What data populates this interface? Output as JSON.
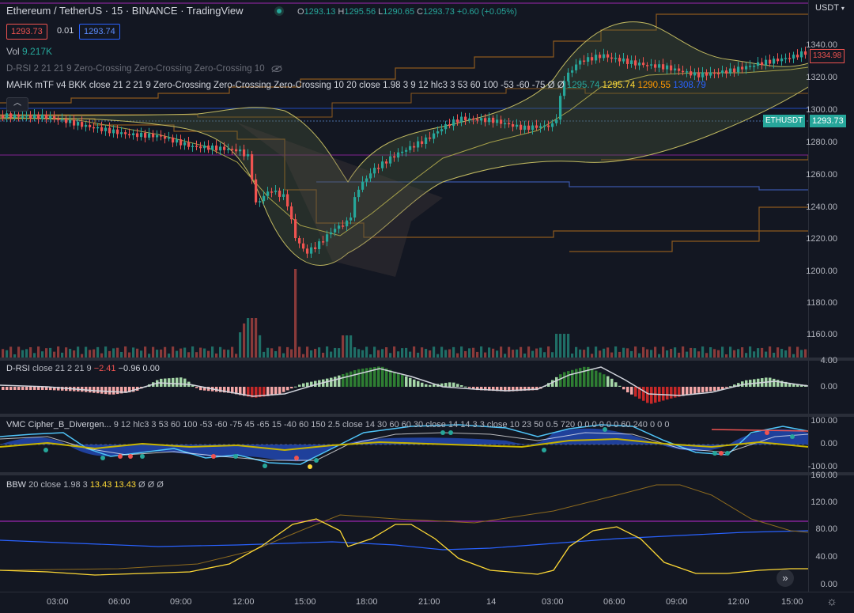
{
  "header": {
    "title": "Ethereum / TetherUS · 15 · BINANCE · TradingView",
    "symbol": "Ethereum / TetherUS",
    "interval": "15",
    "exchange": "BINANCE",
    "brand": "TradingView",
    "ohlc": {
      "o_label": "O",
      "o": "1293.13",
      "h_label": "H",
      "h": "1295.56",
      "l_label": "L",
      "l": "1290.65",
      "c_label": "C",
      "c": "1293.73",
      "change": "+0.60 (+0.05%)"
    },
    "bid": "1293.73",
    "spread": "0.01",
    "ask": "1293.74"
  },
  "currency": "USDT",
  "main_indicators": {
    "vol_label": "Vol",
    "vol_value": "9.217K",
    "drsi_label": "D-RSI 2 21 21 9 Zero-Crossing Zero-Crossing Zero-Crossing 10",
    "mahk_label": "MAHK mTF v4 BKK close 21 2 21 9 Zero-Crossing Zero-Crossing Zero-Crossing 10 20 close 1.98 3 9 12 hlc3 3 53 60 100 -53 -60 -75  Ø  Ø",
    "mahk_v1": "1295.74",
    "mahk_v2": "1295.74",
    "mahk_v3": "1290.55",
    "mahk_v4": "1308.79"
  },
  "price_axis": [
    "1340.00",
    "1320.00",
    "1300.00",
    "1280.00",
    "1260.00",
    "1240.00",
    "1220.00",
    "1200.00",
    "1180.00",
    "1160.00"
  ],
  "last_price_tag": "1334.98",
  "symbol_tag": "ETHUSDT",
  "symbol_price": "1293.73",
  "drsi_pane": {
    "label": "D-RSI",
    "params": "close 21 2 21 9",
    "v1": "−2.41",
    "v2": "−0.96",
    "v3": "0.00",
    "axis": [
      "4.00",
      "0.00"
    ]
  },
  "vmc_pane": {
    "label": "VMC Cipher_B_Divergen...",
    "params": "9 12 hlc3 3 53 60 100 -53 -60 -75 45 -65 15 -40 60 150 2.5 close 14 30 60 60 30 close 14 14 3 3 close 10 23 50 0.5 720 0 0 0 0 0 0 60 240 0 0 0",
    "axis": [
      "100.00",
      "0.00",
      "-100.00"
    ]
  },
  "bbw_pane": {
    "label": "BBW",
    "params": "20 close 1.98 3",
    "v1": "13.43",
    "v2": "13.43",
    "v3": "Ø Ø Ø",
    "axis": [
      "160.00",
      "120.00",
      "80.00",
      "40.00",
      "0.00"
    ]
  },
  "time_axis": [
    "03:00",
    "06:00",
    "09:00",
    "12:00",
    "15:00",
    "18:00",
    "21:00",
    "14",
    "03:00",
    "06:00",
    "09:00",
    "12:00",
    "15:00"
  ],
  "colors": {
    "up": "#26a69a",
    "down": "#ef5350",
    "bg": "#131722",
    "accent": "#2962ff",
    "yellow": "#fdd835"
  }
}
